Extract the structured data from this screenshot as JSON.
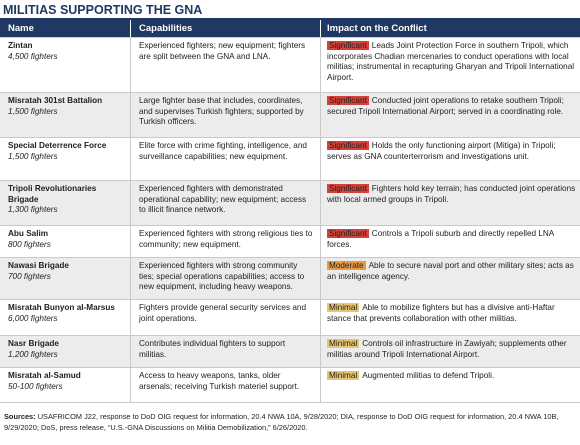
{
  "title": "MILITIAS SUPPORTING THE GNA",
  "table": {
    "header": [
      "Name",
      "Capabilities",
      "Impact on the Conflict"
    ],
    "rows": [
      {
        "name": "Zintan",
        "fighters": "4,500 fighters",
        "capabilities": "Experienced fighters; new equipment; fighters are split between the GNA and LNA.",
        "level": "Significant",
        "impact": "Leads Joint Protection Force in southern Tripoli, which incorporates Chadian mercenaries to conduct operations with local militias; instrumental in recapturing Gharyan and Tripoli International Airport."
      },
      {
        "name": "Misratah 301st Battalion",
        "fighters": "1,500 fighters",
        "capabilities": "Large fighter base that includes, coordinates, and supervises Turkish fighters; supported by Turkish officers.",
        "level": "Significant",
        "impact": "Conducted joint operations to retake southern Tripoli; secured Tripoli International Airport; served in a coordinating role."
      },
      {
        "name": "Special Deterrence Force",
        "fighters": "1,500 fighters",
        "capabilities": "Elite force with crime fighting, intelligence, and surveillance capabilities; new equipment.",
        "level": "Significant",
        "impact": "Holds the only functioning airport (Mitiga) in Tripoli; serves as GNA counterterrorism and investigations unit."
      },
      {
        "name": "Tripoli Revolutionaries Brigade",
        "fighters": "1,300 fighters",
        "capabilities": "Experienced fighters with demonstrated operational capability; new equipment; access to illicit finance network.",
        "level": "Significant",
        "impact": "Fighters hold key terrain; has conducted joint operations with local armed groups in Tripoli."
      },
      {
        "name": "Abu Salim",
        "fighters": "800 fighters",
        "capabilities": "Experienced fighters with strong religious ties to community; new equipment.",
        "level": "Significant",
        "impact": "Controls a Tripoli suburb and directly repelled LNA forces."
      },
      {
        "name": "Nawasi Brigade",
        "fighters": "700 fighters",
        "capabilities": "Experienced fighters with strong community ties; special operations capabilities; access to new equipment, including heavy weapons.",
        "level": "Moderate",
        "impact": "Able to secure naval port and other military sites; acts as an intelligence agency."
      },
      {
        "name": "Misratah Bunyon al-Marsus",
        "fighters": "6,000 fighters",
        "capabilities": "Fighters provide general security services and joint operations.",
        "level": "Minimal",
        "impact": "Able to mobilize fighters but has a divisive anti-Haftar stance that prevents collaboration with other militias."
      },
      {
        "name": "Nasr Brigade",
        "fighters": "1,200 fighters",
        "capabilities": "Contributes individual fighters to support militias.",
        "level": "Minimal",
        "impact": "Controls oil infrastructure in Zawiyah; supplements other militias around Tripoli International Airport."
      },
      {
        "name": "Misratah al-Samud",
        "fighters": "50-100 fighters",
        "capabilities": "Access to heavy weapons, tanks, older arsenals; receiving Turkish materiel support.",
        "level": "Minimal",
        "impact": "Augmented militias to defend Tripoli."
      }
    ]
  },
  "sources": {
    "label": "Sources:",
    "text": "USAFRICOM J22, response to DoD OIG request for information, 20.4 NWA 10A, 9/28/2020; DIA, response to DoD OIG request for information, 20.4 NWA 10B, 9/29/2020; DoS, press release, “U.S.-GNA Discussions on Militia Demobilization,” 6/26/2020."
  }
}
